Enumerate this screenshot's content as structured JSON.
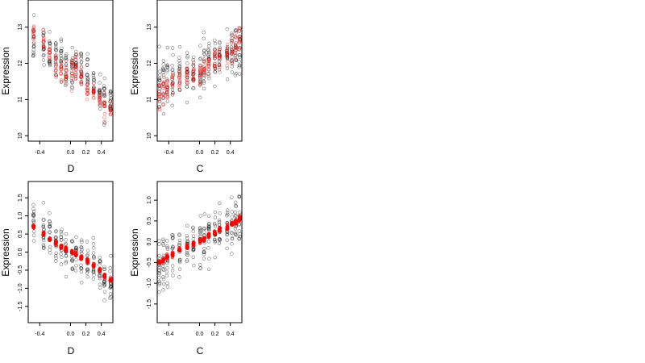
{
  "chart_data": [
    {
      "type": "scatter",
      "xlabel": "D",
      "ylabel": "Expression",
      "xlim": [
        -0.55,
        0.55
      ],
      "ylim": [
        9.85,
        13.75
      ],
      "xticks": [
        "-0.4",
        "0.0",
        "0.2",
        "0.4"
      ],
      "xtick_values": [
        -0.4,
        0.0,
        0.2,
        0.4
      ],
      "yticks": [
        "10",
        "11",
        "12",
        "13"
      ],
      "ytick_values": [
        10,
        11,
        12,
        13
      ],
      "x_groups": [
        -0.48,
        -0.35,
        -0.27,
        -0.19,
        -0.12,
        -0.06,
        0.02,
        0.07,
        0.14,
        0.22,
        0.3,
        0.38,
        0.44,
        0.52
      ],
      "series": [
        {
          "color": "#000000",
          "marker": "open-circle",
          "group_centers": [
            12.6,
            12.4,
            12.3,
            12.2,
            12.1,
            11.9,
            11.9,
            11.9,
            11.8,
            11.7,
            11.5,
            11.3,
            11.1,
            11.0
          ],
          "group_spread": [
            0.55,
            0.5,
            0.5,
            0.5,
            0.5,
            0.5,
            0.55,
            0.55,
            0.55,
            0.5,
            0.5,
            0.5,
            0.5,
            0.4
          ]
        },
        {
          "color": "#ff0000",
          "marker": "open-circle",
          "group_centers": [
            12.9,
            12.6,
            12.3,
            12.0,
            11.8,
            11.6,
            11.8,
            11.9,
            11.6,
            11.3,
            11.2,
            11.0,
            10.8,
            10.7
          ],
          "group_spread": [
            0.3,
            0.3,
            0.3,
            0.3,
            0.3,
            0.3,
            0.3,
            0.3,
            0.3,
            0.3,
            0.3,
            0.3,
            0.3,
            0.2
          ]
        }
      ]
    },
    {
      "type": "scatter",
      "xlabel": "C",
      "ylabel": "Expression",
      "xlim": [
        -0.55,
        0.55
      ],
      "ylim": [
        9.85,
        13.75
      ],
      "xticks": [
        "-0.4",
        "0.0",
        "0.2",
        "0.4"
      ],
      "xtick_values": [
        -0.4,
        0.0,
        0.2,
        0.4
      ],
      "yticks": [
        "10",
        "11",
        "12",
        "13"
      ],
      "ytick_values": [
        10,
        11,
        12,
        13
      ],
      "x_groups": [
        -0.52,
        -0.47,
        -0.42,
        -0.35,
        -0.26,
        -0.16,
        -0.08,
        0.01,
        0.06,
        0.12,
        0.2,
        0.26,
        0.36,
        0.42,
        0.47,
        0.52
      ],
      "series": [
        {
          "color": "#000000",
          "marker": "open-circle",
          "group_centers": [
            11.5,
            11.5,
            11.6,
            11.6,
            11.7,
            11.8,
            11.8,
            11.9,
            12.0,
            12.1,
            12.1,
            12.2,
            12.3,
            12.3,
            12.4,
            12.4
          ],
          "group_spread": [
            0.7,
            0.7,
            0.7,
            0.6,
            0.6,
            0.6,
            0.6,
            0.7,
            0.7,
            0.6,
            0.6,
            0.6,
            0.6,
            0.7,
            0.7,
            0.7
          ]
        },
        {
          "color": "#ff0000",
          "marker": "open-circle",
          "group_centers": [
            11.1,
            11.2,
            11.4,
            11.5,
            11.6,
            11.7,
            11.7,
            11.7,
            11.9,
            12.0,
            12.1,
            12.1,
            12.2,
            12.3,
            12.5,
            12.6
          ],
          "group_spread": [
            0.45,
            0.45,
            0.4,
            0.35,
            0.35,
            0.3,
            0.3,
            0.3,
            0.3,
            0.3,
            0.3,
            0.3,
            0.35,
            0.35,
            0.4,
            0.4
          ]
        }
      ]
    },
    {
      "type": "scatter",
      "xlabel": "D",
      "ylabel": "Expression",
      "xlim": [
        -0.55,
        0.55
      ],
      "ylim": [
        -1.95,
        1.95
      ],
      "xticks": [
        "-0.4",
        "0.0",
        "0.2",
        "0.4"
      ],
      "xtick_values": [
        -0.4,
        0.0,
        0.2,
        0.4
      ],
      "yticks": [
        "1.5",
        "1.0",
        "0.5",
        "0.0",
        "-0.5",
        "-1.0",
        "-1.5"
      ],
      "ytick_values": [
        1.5,
        1.0,
        0.5,
        0.0,
        -0.5,
        -1.0,
        -1.5
      ],
      "x_groups": [
        -0.48,
        -0.35,
        -0.27,
        -0.19,
        -0.12,
        -0.06,
        0.02,
        0.07,
        0.14,
        0.22,
        0.3,
        0.38,
        0.44,
        0.52
      ],
      "series": [
        {
          "color": "#000000",
          "marker": "open-circle",
          "group_centers": [
            0.9,
            0.6,
            0.5,
            0.3,
            0.2,
            0.05,
            0.0,
            0.0,
            -0.1,
            -0.3,
            -0.4,
            -0.6,
            -0.8,
            -0.9
          ],
          "group_spread": [
            0.55,
            0.5,
            0.5,
            0.45,
            0.45,
            0.45,
            0.5,
            0.5,
            0.5,
            0.45,
            0.45,
            0.5,
            0.55,
            0.45
          ]
        },
        {
          "color": "#ff0000",
          "marker": "filled-circle",
          "group_centers": [
            0.7,
            0.5,
            0.35,
            0.25,
            0.15,
            0.08,
            0.0,
            -0.05,
            -0.15,
            -0.25,
            -0.38,
            -0.5,
            -0.65,
            -0.78
          ],
          "group_spread": [
            0.05,
            0.05,
            0.05,
            0.05,
            0.05,
            0.05,
            0.05,
            0.05,
            0.05,
            0.05,
            0.05,
            0.05,
            0.05,
            0.05
          ]
        }
      ]
    },
    {
      "type": "scatter",
      "xlabel": "C",
      "ylabel": "Expression",
      "xlim": [
        -0.55,
        0.55
      ],
      "ylim": [
        -1.95,
        1.45
      ],
      "xticks": [
        "-0.4",
        "0.0",
        "0.2",
        "0.4"
      ],
      "xtick_values": [
        -0.4,
        0.0,
        0.2,
        0.4
      ],
      "yticks": [
        "1.0",
        "0.5",
        "0.0",
        "-0.5",
        "-1.0",
        "-1.5"
      ],
      "ytick_values": [
        1.0,
        0.5,
        0.0,
        -0.5,
        -1.0,
        -1.5
      ],
      "x_groups": [
        -0.52,
        -0.47,
        -0.42,
        -0.35,
        -0.26,
        -0.16,
        -0.08,
        0.01,
        0.06,
        0.12,
        0.2,
        0.26,
        0.36,
        0.42,
        0.47,
        0.52
      ],
      "series": [
        {
          "color": "#000000",
          "marker": "open-circle",
          "group_centers": [
            -0.6,
            -0.5,
            -0.4,
            -0.3,
            -0.2,
            -0.1,
            -0.05,
            0.0,
            0.1,
            0.2,
            0.25,
            0.3,
            0.35,
            0.4,
            0.45,
            0.5
          ],
          "group_spread": [
            0.6,
            0.6,
            0.55,
            0.55,
            0.5,
            0.5,
            0.5,
            0.55,
            0.55,
            0.5,
            0.5,
            0.5,
            0.5,
            0.55,
            0.55,
            0.6
          ]
        },
        {
          "color": "#ff0000",
          "marker": "filled-circle",
          "group_centers": [
            -0.5,
            -0.45,
            -0.38,
            -0.3,
            -0.2,
            -0.12,
            -0.05,
            0.02,
            0.08,
            0.14,
            0.22,
            0.28,
            0.35,
            0.42,
            0.48,
            0.55
          ],
          "group_spread": [
            0.05,
            0.05,
            0.05,
            0.05,
            0.05,
            0.05,
            0.05,
            0.05,
            0.05,
            0.05,
            0.05,
            0.05,
            0.05,
            0.05,
            0.05,
            0.05
          ]
        }
      ]
    }
  ]
}
